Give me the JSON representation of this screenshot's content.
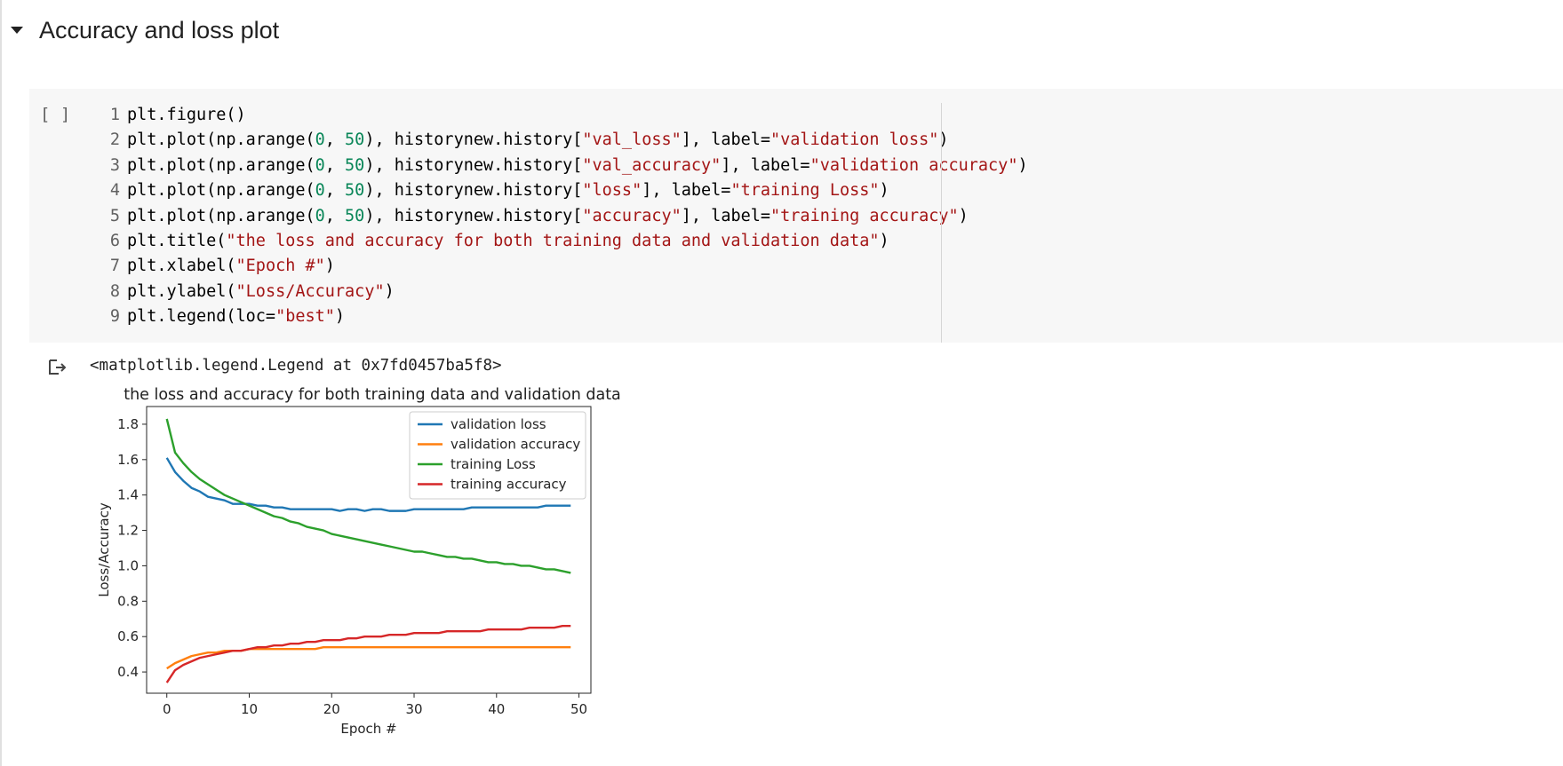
{
  "section": {
    "title": "Accuracy and loss plot"
  },
  "cell": {
    "run_label": "[ ]",
    "lines": [
      {
        "n": "1",
        "parts": [
          [
            "plt.figure()",
            ""
          ]
        ]
      },
      {
        "n": "2",
        "parts": [
          [
            "plt.plot(np.arange(",
            ""
          ],
          [
            "0",
            "num"
          ],
          [
            ", ",
            ""
          ],
          [
            "50",
            "num"
          ],
          [
            "), historynew.history[",
            ""
          ],
          [
            "\"val_loss\"",
            "str"
          ],
          [
            "], label=",
            ""
          ],
          [
            "\"validation loss\"",
            "str"
          ],
          [
            ")",
            ""
          ]
        ]
      },
      {
        "n": "3",
        "parts": [
          [
            "plt.plot(np.arange(",
            ""
          ],
          [
            "0",
            "num"
          ],
          [
            ", ",
            ""
          ],
          [
            "50",
            "num"
          ],
          [
            "), historynew.history[",
            ""
          ],
          [
            "\"val_accuracy\"",
            "str"
          ],
          [
            "], label=",
            ""
          ],
          [
            "\"validation accuracy\"",
            "str"
          ],
          [
            ")",
            ""
          ]
        ]
      },
      {
        "n": "4",
        "parts": [
          [
            "plt.plot(np.arange(",
            ""
          ],
          [
            "0",
            "num"
          ],
          [
            ", ",
            ""
          ],
          [
            "50",
            "num"
          ],
          [
            "), historynew.history[",
            ""
          ],
          [
            "\"loss\"",
            "str"
          ],
          [
            "], label=",
            ""
          ],
          [
            "\"training Loss\"",
            "str"
          ],
          [
            ")",
            ""
          ]
        ]
      },
      {
        "n": "5",
        "parts": [
          [
            "plt.plot(np.arange(",
            ""
          ],
          [
            "0",
            "num"
          ],
          [
            ", ",
            ""
          ],
          [
            "50",
            "num"
          ],
          [
            "), historynew.history[",
            ""
          ],
          [
            "\"accuracy\"",
            "str"
          ],
          [
            "], label=",
            ""
          ],
          [
            "\"training accuracy\"",
            "str"
          ],
          [
            ")",
            ""
          ]
        ]
      },
      {
        "n": "6",
        "parts": [
          [
            "plt.title(",
            ""
          ],
          [
            "\"the loss and accuracy for both training data and validation data\"",
            "str"
          ],
          [
            ")",
            ""
          ]
        ]
      },
      {
        "n": "7",
        "parts": [
          [
            "plt.xlabel(",
            ""
          ],
          [
            "\"Epoch #\"",
            "str"
          ],
          [
            ")",
            ""
          ]
        ]
      },
      {
        "n": "8",
        "parts": [
          [
            "plt.ylabel(",
            ""
          ],
          [
            "\"Loss/Accuracy\"",
            "str"
          ],
          [
            ")",
            ""
          ]
        ]
      },
      {
        "n": "9",
        "parts": [
          [
            "plt.legend(loc=",
            ""
          ],
          [
            "\"best\"",
            "str"
          ],
          [
            ")",
            ""
          ]
        ]
      }
    ]
  },
  "output": {
    "text": "<matplotlib.legend.Legend at 0x7fd0457ba5f8>"
  },
  "chart_data": {
    "type": "line",
    "title": "the loss and accuracy for both training data and validation data",
    "xlabel": "Epoch #",
    "ylabel": "Loss/Accuracy",
    "xlim": [
      -2.45,
      51.45
    ],
    "ylim": [
      0.28,
      1.9
    ],
    "xticks": [
      0,
      10,
      20,
      30,
      40,
      50
    ],
    "yticks": [
      0.4,
      0.6,
      0.8,
      1.0,
      1.2,
      1.4,
      1.6,
      1.8
    ],
    "legend_position": "top-right",
    "x": [
      0,
      1,
      2,
      3,
      4,
      5,
      6,
      7,
      8,
      9,
      10,
      11,
      12,
      13,
      14,
      15,
      16,
      17,
      18,
      19,
      20,
      21,
      22,
      23,
      24,
      25,
      26,
      27,
      28,
      29,
      30,
      31,
      32,
      33,
      34,
      35,
      36,
      37,
      38,
      39,
      40,
      41,
      42,
      43,
      44,
      45,
      46,
      47,
      48,
      49
    ],
    "series": [
      {
        "name": "validation loss",
        "color": "#1f77b4",
        "values": [
          1.61,
          1.53,
          1.48,
          1.44,
          1.42,
          1.39,
          1.38,
          1.37,
          1.35,
          1.35,
          1.35,
          1.34,
          1.34,
          1.33,
          1.33,
          1.32,
          1.32,
          1.32,
          1.32,
          1.32,
          1.32,
          1.31,
          1.32,
          1.32,
          1.31,
          1.32,
          1.32,
          1.31,
          1.31,
          1.31,
          1.32,
          1.32,
          1.32,
          1.32,
          1.32,
          1.32,
          1.32,
          1.33,
          1.33,
          1.33,
          1.33,
          1.33,
          1.33,
          1.33,
          1.33,
          1.33,
          1.34,
          1.34,
          1.34,
          1.34
        ]
      },
      {
        "name": "validation accuracy",
        "color": "#ff7f0e",
        "values": [
          0.42,
          0.45,
          0.47,
          0.49,
          0.5,
          0.51,
          0.51,
          0.52,
          0.52,
          0.52,
          0.53,
          0.53,
          0.53,
          0.53,
          0.53,
          0.53,
          0.53,
          0.53,
          0.53,
          0.54,
          0.54,
          0.54,
          0.54,
          0.54,
          0.54,
          0.54,
          0.54,
          0.54,
          0.54,
          0.54,
          0.54,
          0.54,
          0.54,
          0.54,
          0.54,
          0.54,
          0.54,
          0.54,
          0.54,
          0.54,
          0.54,
          0.54,
          0.54,
          0.54,
          0.54,
          0.54,
          0.54,
          0.54,
          0.54,
          0.54
        ]
      },
      {
        "name": "training Loss",
        "color": "#2ca02c",
        "values": [
          1.83,
          1.64,
          1.58,
          1.53,
          1.49,
          1.46,
          1.43,
          1.4,
          1.38,
          1.36,
          1.34,
          1.32,
          1.3,
          1.28,
          1.27,
          1.25,
          1.24,
          1.22,
          1.21,
          1.2,
          1.18,
          1.17,
          1.16,
          1.15,
          1.14,
          1.13,
          1.12,
          1.11,
          1.1,
          1.09,
          1.08,
          1.08,
          1.07,
          1.06,
          1.05,
          1.05,
          1.04,
          1.04,
          1.03,
          1.02,
          1.02,
          1.01,
          1.01,
          1.0,
          1.0,
          0.99,
          0.98,
          0.98,
          0.97,
          0.96
        ]
      },
      {
        "name": "training accuracy",
        "color": "#d62728",
        "values": [
          0.34,
          0.41,
          0.44,
          0.46,
          0.48,
          0.49,
          0.5,
          0.51,
          0.52,
          0.52,
          0.53,
          0.54,
          0.54,
          0.55,
          0.55,
          0.56,
          0.56,
          0.57,
          0.57,
          0.58,
          0.58,
          0.58,
          0.59,
          0.59,
          0.6,
          0.6,
          0.6,
          0.61,
          0.61,
          0.61,
          0.62,
          0.62,
          0.62,
          0.62,
          0.63,
          0.63,
          0.63,
          0.63,
          0.63,
          0.64,
          0.64,
          0.64,
          0.64,
          0.64,
          0.65,
          0.65,
          0.65,
          0.65,
          0.66,
          0.66
        ]
      }
    ]
  }
}
